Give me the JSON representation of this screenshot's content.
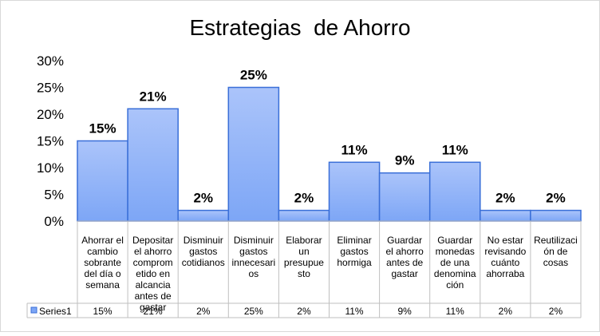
{
  "chart_data": {
    "type": "bar",
    "title": "Estrategias  de Ahorro",
    "categories": [
      "Ahorrar el cambio sobrante del día o semana",
      "Depositar el ahorro comprometido en alcancia antes de gastar",
      "Disminuir gastos cotidianos",
      "Disminuir gastos innecesarios",
      "Elaborar un presupuesto",
      "Eliminar gastos hormiga",
      "Guardar el ahorro antes de gastar",
      "Guardar monedas de una denominación",
      "No estar revisando cuánto ahorraba",
      "Reutilización de cosas"
    ],
    "category_lines": [
      [
        "Ahorrar el",
        "cambio",
        "sobrante",
        "del día o",
        "semana"
      ],
      [
        "Depositar",
        "el ahorro",
        "comprom",
        "etido en",
        "alcancia",
        "antes de",
        "gastar"
      ],
      [
        "Disminuir",
        "gastos",
        "cotidianos"
      ],
      [
        "Disminuir",
        "gastos",
        "innecesari",
        "os"
      ],
      [
        "Elaborar",
        "un",
        "presupue",
        "sto"
      ],
      [
        "Eliminar",
        "gastos",
        "hormiga"
      ],
      [
        "Guardar",
        "el ahorro",
        "antes de",
        "gastar"
      ],
      [
        "Guardar",
        "monedas",
        "de una",
        "denomina",
        "ción"
      ],
      [
        "No estar",
        "revisando",
        "cuánto",
        "ahorraba"
      ],
      [
        "Reutilizaci",
        "ón de",
        "cosas"
      ]
    ],
    "series": [
      {
        "name": "Series1",
        "values": [
          0.15,
          0.21,
          0.02,
          0.25,
          0.02,
          0.11,
          0.09,
          0.11,
          0.02,
          0.02
        ],
        "labels": [
          "15%",
          "21%",
          "2%",
          "25%",
          "2%",
          "11%",
          "9%",
          "11%",
          "2%",
          "2%"
        ]
      }
    ],
    "ylim": [
      0,
      0.3
    ],
    "y_ticks": [
      "0%",
      "5%",
      "10%",
      "15%",
      "20%",
      "25%",
      "30%"
    ],
    "y_tick_values": [
      0,
      0.05,
      0.1,
      0.15,
      0.2,
      0.25,
      0.3
    ],
    "gridlines": false,
    "data_table": true,
    "colors": {
      "bar_fill_top": "#ABC4FA",
      "bar_fill_bottom": "#7DA6F6",
      "bar_stroke": "#3A6FD8",
      "axis": "#BFBFBF",
      "table_border": "#BFBFBF",
      "text": "#000000"
    }
  }
}
